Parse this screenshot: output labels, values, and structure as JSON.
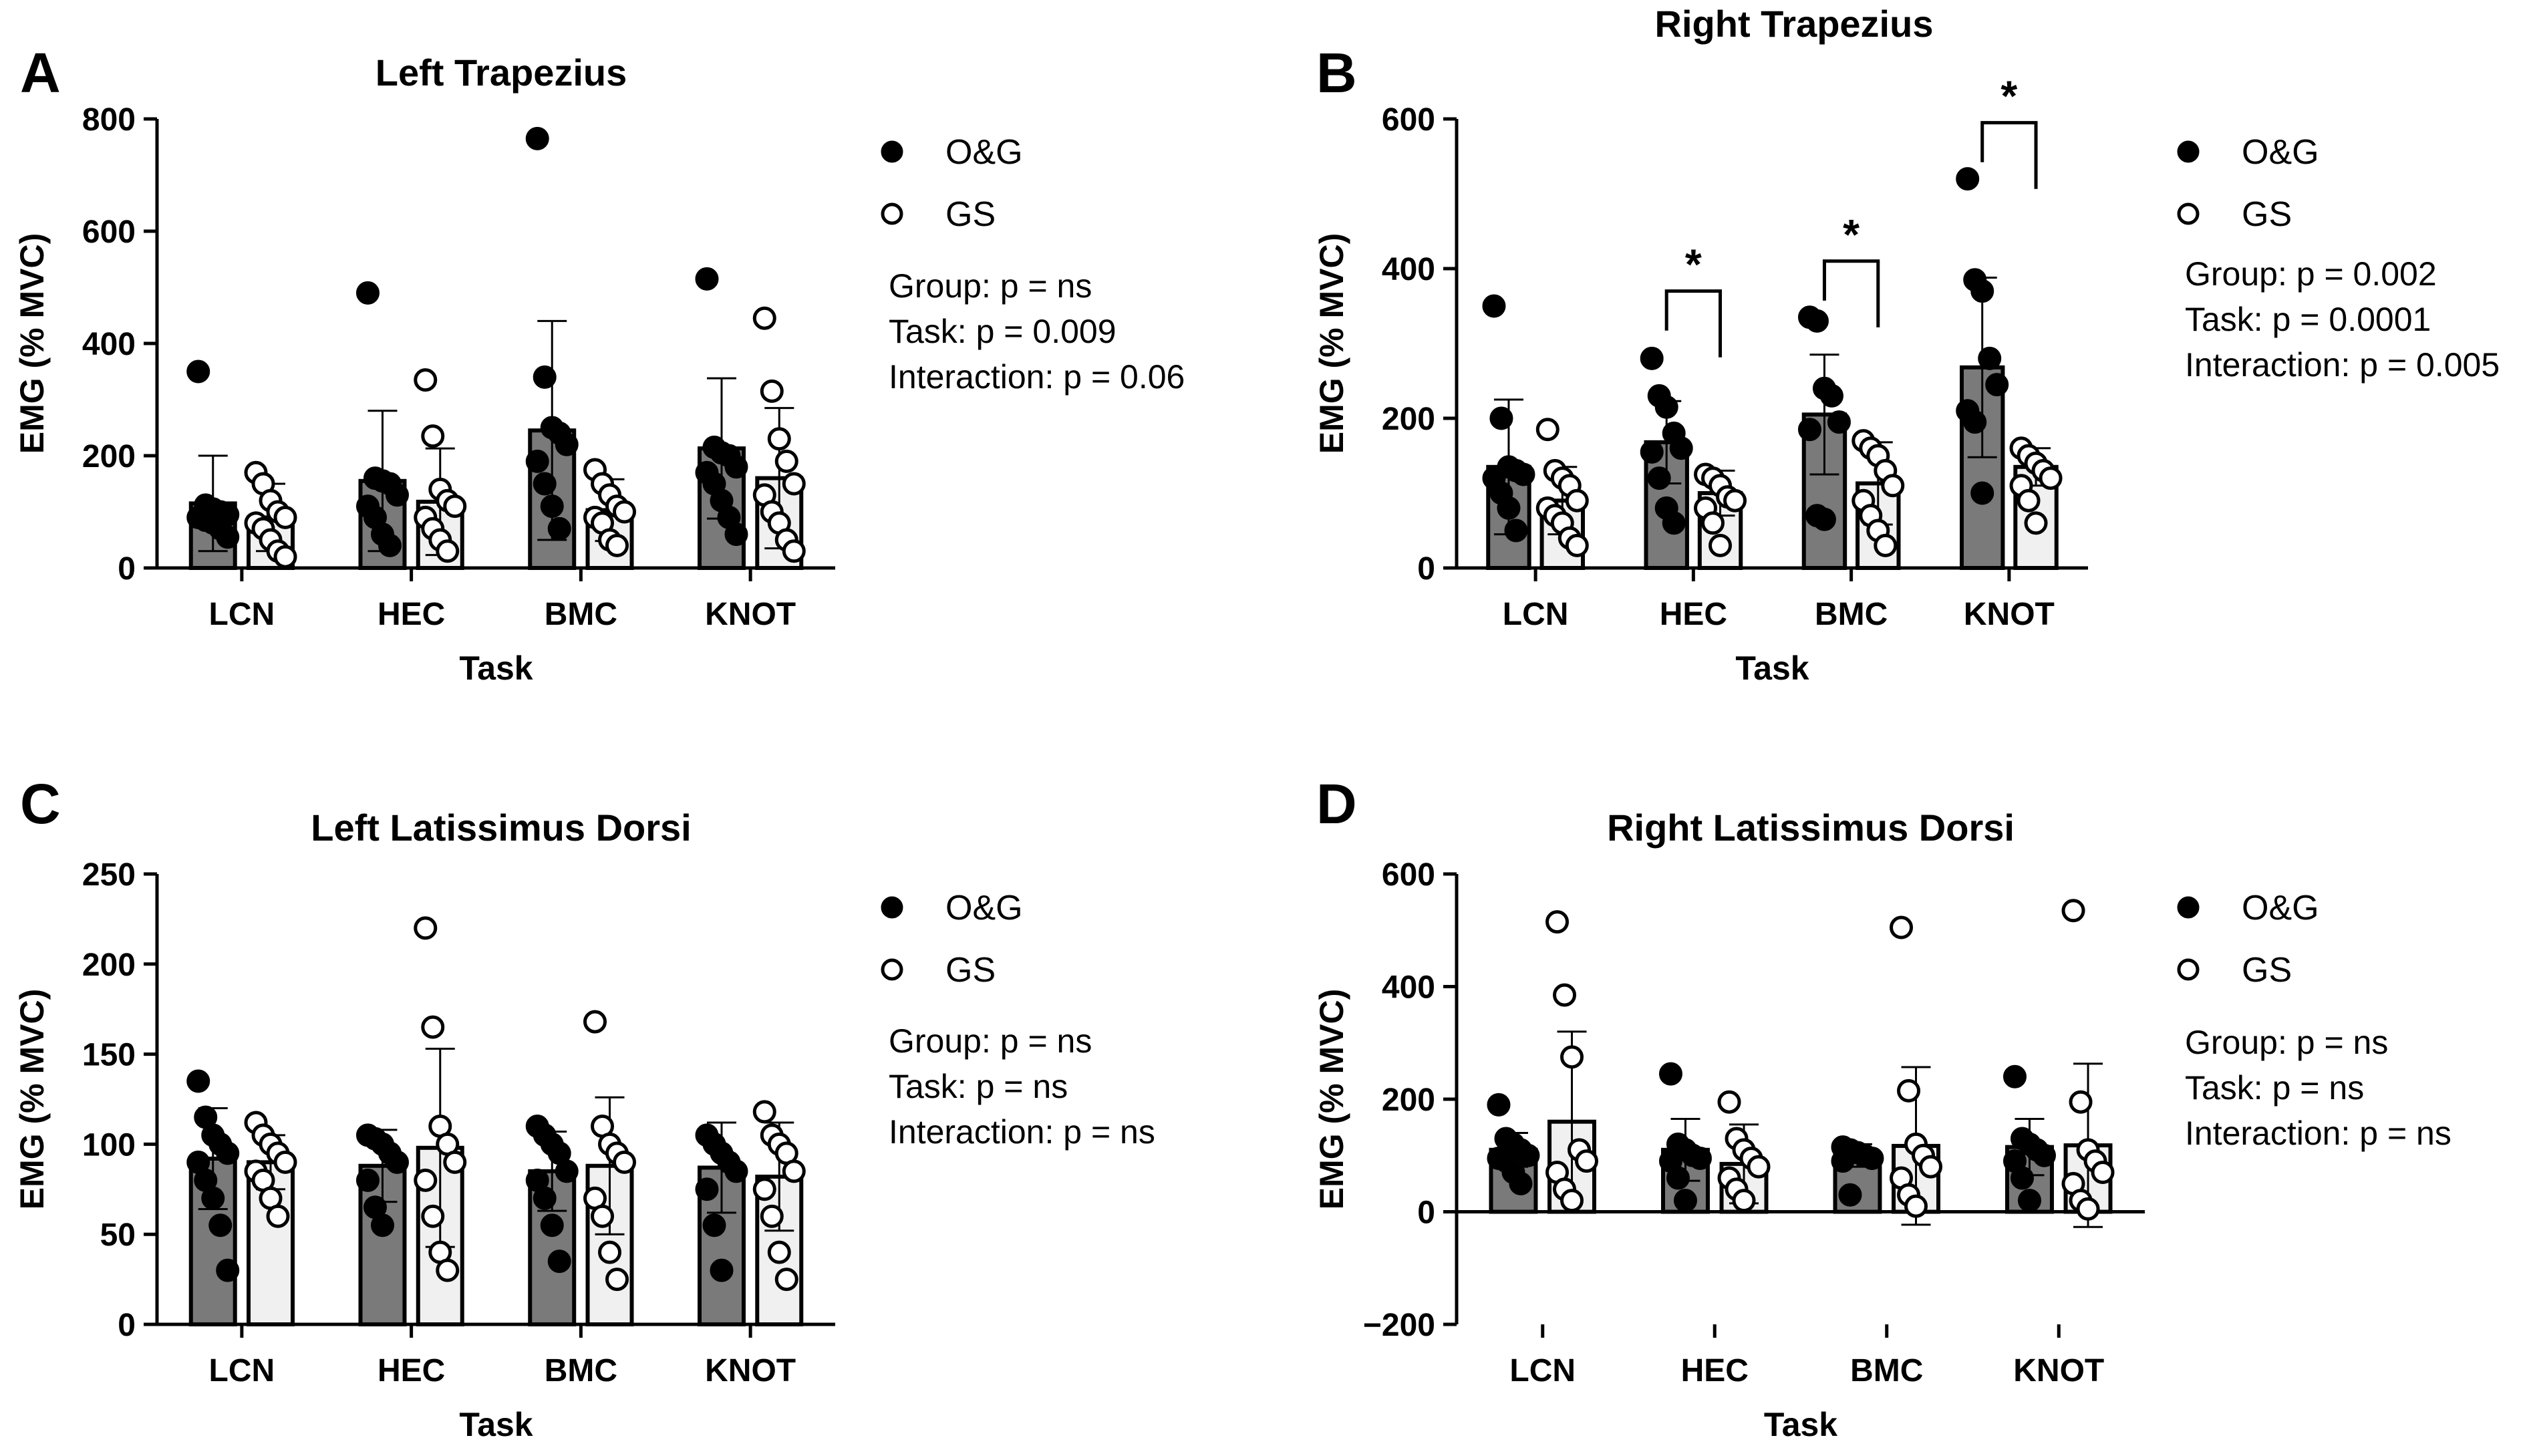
{
  "legend": {
    "og_label": "O&G",
    "gs_label": "GS"
  },
  "colors": {
    "og_fill": "#7a7a7a",
    "gs_fill": "#f0f0f0",
    "stroke": "#000000",
    "og_dot": "#000000",
    "gs_dot": "#ffffff"
  },
  "chart_data": [
    {
      "panel": "A",
      "type": "bar",
      "title": "Left Trapezius",
      "xlabel": "Task",
      "ylabel": "EMG (% MVC)",
      "categories": [
        "LCN",
        "HEC",
        "BMC",
        "KNOT"
      ],
      "ylim": [
        0,
        800
      ],
      "yticks": [
        0,
        200,
        400,
        600,
        800
      ],
      "series": [
        {
          "name": "O&G",
          "values": [
            115,
            155,
            245,
            213
          ],
          "sd": [
            85,
            125,
            195,
            125
          ],
          "points": [
            [
              350,
              112,
              105,
              100,
              95,
              90,
              85,
              80,
              70,
              55
            ],
            [
              490,
              160,
              155,
              150,
              130,
              110,
              90,
              60,
              40
            ],
            [
              765,
              340,
              250,
              240,
              220,
              190,
              150,
              110,
              70
            ],
            [
              515,
              215,
              205,
              200,
              180,
              170,
              150,
              120,
              90,
              60
            ]
          ]
        },
        {
          "name": "GS",
          "values": [
            90,
            118,
            103,
            160
          ],
          "sd": [
            60,
            95,
            55,
            125
          ],
          "points": [
            [
              170,
              150,
              120,
              100,
              90,
              80,
              70,
              50,
              30,
              20
            ],
            [
              335,
              235,
              140,
              120,
              110,
              90,
              70,
              50,
              30
            ],
            [
              175,
              150,
              130,
              110,
              100,
              90,
              80,
              50,
              40
            ],
            [
              445,
              315,
              230,
              190,
              150,
              130,
              100,
              80,
              50,
              30
            ]
          ]
        }
      ],
      "stats": [
        "Group: p = ns",
        "Task: p = 0.009",
        "Interaction: p = 0.06"
      ]
    },
    {
      "panel": "B",
      "type": "bar",
      "title": "Right Trapezius",
      "xlabel": "Task",
      "ylabel": "EMG (% MVC)",
      "categories": [
        "LCN",
        "HEC",
        "BMC",
        "KNOT"
      ],
      "ylim": [
        0,
        600
      ],
      "yticks": [
        0,
        200,
        400,
        600
      ],
      "series": [
        {
          "name": "O&G",
          "values": [
            135,
            168,
            205,
            268
          ],
          "sd": [
            90,
            55,
            80,
            120
          ],
          "points": [
            [
              350,
              200,
              135,
              130,
              125,
              120,
              100,
              80,
              50
            ],
            [
              280,
              230,
              215,
              180,
              160,
              155,
              120,
              80,
              60
            ],
            [
              335,
              330,
              240,
              230,
              195,
              185,
              70,
              65
            ],
            [
              520,
              385,
              370,
              280,
              245,
              210,
              195,
              100
            ]
          ]
        },
        {
          "name": "GS",
          "values": [
            90,
            100,
            113,
            135
          ],
          "sd": [
            45,
            30,
            55,
            25
          ],
          "points": [
            [
              185,
              130,
              120,
              110,
              90,
              80,
              70,
              60,
              40,
              30
            ],
            [
              125,
              120,
              110,
              95,
              90,
              80,
              60,
              30
            ],
            [
              170,
              160,
              150,
              130,
              110,
              90,
              70,
              50,
              30
            ],
            [
              160,
              150,
              140,
              130,
              120,
              110,
              90,
              60
            ]
          ]
        }
      ],
      "significance": [
        {
          "category": "HEC",
          "label": "*",
          "bar_value": 370
        },
        {
          "category": "BMC",
          "label": "*",
          "bar_value": 410
        },
        {
          "category": "KNOT",
          "label": "*",
          "bar_value": 595
        }
      ],
      "stats": [
        "Group: p = 0.002",
        "Task: p = 0.0001",
        "Interaction: p = 0.005"
      ]
    },
    {
      "panel": "C",
      "type": "bar",
      "title": "Left Latissimus Dorsi",
      "xlabel": "Task",
      "ylabel": "EMG (% MVC)",
      "categories": [
        "LCN",
        "HEC",
        "BMC",
        "KNOT"
      ],
      "ylim": [
        0,
        250
      ],
      "yticks": [
        0,
        50,
        100,
        150,
        200,
        250
      ],
      "series": [
        {
          "name": "O&G",
          "values": [
            92,
            88,
            85,
            87
          ],
          "sd": [
            28,
            20,
            22,
            25
          ],
          "points": [
            [
              135,
              115,
              105,
              100,
              95,
              90,
              80,
              70,
              55,
              30
            ],
            [
              105,
              103,
              100,
              95,
              90,
              80,
              65,
              55
            ],
            [
              110,
              105,
              100,
              95,
              85,
              80,
              70,
              55,
              35
            ],
            [
              105,
              100,
              95,
              90,
              85,
              75,
              55,
              30
            ]
          ]
        },
        {
          "name": "GS",
          "values": [
            90,
            98,
            88,
            82
          ],
          "sd": [
            15,
            55,
            38,
            30
          ],
          "points": [
            [
              112,
              105,
              100,
              95,
              90,
              85,
              80,
              70,
              60
            ],
            [
              220,
              165,
              110,
              100,
              90,
              80,
              60,
              40,
              30
            ],
            [
              168,
              110,
              100,
              95,
              90,
              70,
              60,
              40,
              25
            ],
            [
              118,
              105,
              100,
              95,
              85,
              75,
              60,
              40,
              25
            ]
          ]
        }
      ],
      "stats": [
        "Group: p = ns",
        "Task: p = ns",
        "Interaction: p = ns"
      ]
    },
    {
      "panel": "D",
      "type": "bar",
      "title": "Right Latissimus Dorsi",
      "xlabel": "Task",
      "ylabel": "EMG (% MVC)",
      "categories": [
        "LCN",
        "HEC",
        "BMC",
        "KNOT"
      ],
      "ylim": [
        -200,
        600
      ],
      "yticks": [
        -200,
        0,
        200,
        400,
        600
      ],
      "series": [
        {
          "name": "O&G",
          "values": [
            110,
            110,
            100,
            115
          ],
          "sd": [
            30,
            55,
            20,
            50
          ],
          "points": [
            [
              190,
              130,
              120,
              110,
              100,
              95,
              90,
              70,
              50
            ],
            [
              245,
              120,
              110,
              100,
              95,
              90,
              60,
              20
            ],
            [
              115,
              110,
              105,
              100,
              95,
              90,
              30
            ],
            [
              240,
              130,
              120,
              110,
              100,
              90,
              60,
              20
            ]
          ]
        },
        {
          "name": "GS",
          "values": [
            160,
            85,
            117,
            118
          ],
          "sd": [
            160,
            70,
            140,
            145
          ],
          "points": [
            [
              515,
              385,
              275,
              110,
              90,
              70,
              40,
              20
            ],
            [
              195,
              130,
              110,
              95,
              80,
              60,
              40,
              20
            ],
            [
              505,
              215,
              120,
              100,
              80,
              60,
              30,
              10
            ],
            [
              535,
              195,
              110,
              90,
              70,
              50,
              20,
              5
            ]
          ]
        }
      ],
      "stats": [
        "Group: p = ns",
        "Task: p = ns",
        "Interaction: p = ns"
      ]
    }
  ]
}
